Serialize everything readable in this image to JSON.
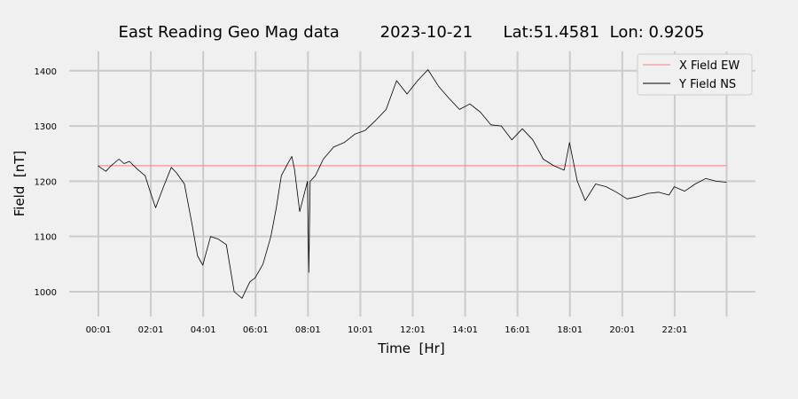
{
  "chart_data": {
    "type": "line",
    "title": "East Reading Geo Mag data        2023-10-21      Lat:51.4581  Lon: 0.9205",
    "xlabel": "Time  [Hr]",
    "ylabel": "Field  [nT]",
    "x_ticks": [
      {
        "hour": 0.0167,
        "label": "00:01"
      },
      {
        "hour": 2.0167,
        "label": "02:01"
      },
      {
        "hour": 4.0167,
        "label": "04:01"
      },
      {
        "hour": 6.0167,
        "label": "06:01"
      },
      {
        "hour": 8.0167,
        "label": "08:01"
      },
      {
        "hour": 10.0167,
        "label": "10:01"
      },
      {
        "hour": 12.0167,
        "label": "12:01"
      },
      {
        "hour": 14.0167,
        "label": "14:01"
      },
      {
        "hour": 16.0167,
        "label": "16:01"
      },
      {
        "hour": 18.0167,
        "label": "18:01"
      },
      {
        "hour": 20.0167,
        "label": "20:01"
      },
      {
        "hour": 22.0167,
        "label": "22:01"
      }
    ],
    "xlim": [
      -1.1,
      25.1
    ],
    "ylim": [
      955,
      1435
    ],
    "y_ticks": [
      1000,
      1100,
      1200,
      1300,
      1400
    ],
    "grid": true,
    "legend_position": "top-right",
    "series": [
      {
        "name": "X Field EW",
        "color": "#f08080",
        "x": [
          0.0,
          24.0
        ],
        "y": [
          1228,
          1228
        ]
      },
      {
        "name": "Y Field NS",
        "color": "#000000",
        "x": [
          0.0,
          0.3,
          0.5,
          0.8,
          1.0,
          1.2,
          1.5,
          1.8,
          2.0,
          2.2,
          2.5,
          2.8,
          3.0,
          3.3,
          3.6,
          3.8,
          4.0,
          4.3,
          4.6,
          4.9,
          5.2,
          5.5,
          5.8,
          6.0,
          6.3,
          6.6,
          6.8,
          7.0,
          7.2,
          7.4,
          7.5,
          7.7,
          8.0,
          8.05,
          8.1,
          8.3,
          8.6,
          9.0,
          9.4,
          9.8,
          10.2,
          10.6,
          11.0,
          11.4,
          11.8,
          12.2,
          12.6,
          13.0,
          13.4,
          13.8,
          14.2,
          14.6,
          15.0,
          15.4,
          15.8,
          16.2,
          16.6,
          17.0,
          17.4,
          17.8,
          18.0,
          18.3,
          18.6,
          19.0,
          19.4,
          19.8,
          20.2,
          20.6,
          21.0,
          21.4,
          21.8,
          22.0,
          22.4,
          22.8,
          23.2,
          23.6,
          24.0
        ],
        "y": [
          1228,
          1218,
          1228,
          1240,
          1232,
          1236,
          1222,
          1210,
          1180,
          1152,
          1190,
          1225,
          1215,
          1195,
          1120,
          1065,
          1048,
          1100,
          1095,
          1085,
          1000,
          988,
          1018,
          1025,
          1050,
          1100,
          1150,
          1210,
          1228,
          1245,
          1222,
          1145,
          1200,
          1035,
          1200,
          1210,
          1240,
          1262,
          1270,
          1285,
          1292,
          1310,
          1330,
          1382,
          1358,
          1382,
          1402,
          1372,
          1350,
          1330,
          1340,
          1325,
          1302,
          1300,
          1275,
          1295,
          1275,
          1240,
          1228,
          1220,
          1270,
          1200,
          1165,
          1195,
          1190,
          1180,
          1168,
          1172,
          1178,
          1180,
          1175,
          1190,
          1182,
          1195,
          1205,
          1200,
          1198
        ]
      }
    ]
  }
}
